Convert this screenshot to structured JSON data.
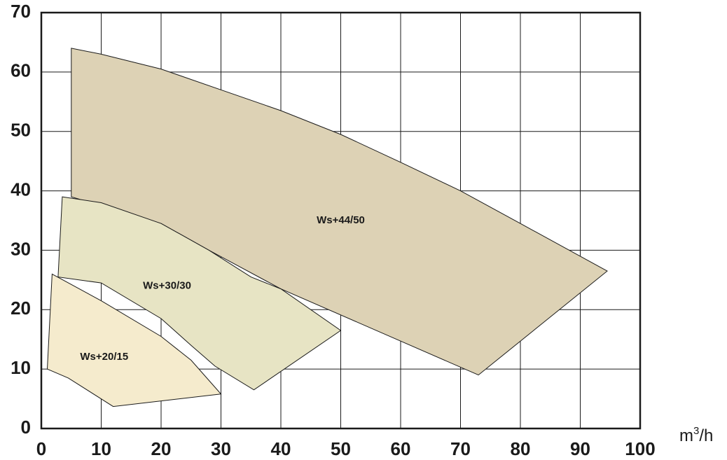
{
  "chart_data": {
    "type": "area",
    "x_unit_base": "m",
    "x_unit_exp": "3",
    "x_unit_tail": "/h",
    "xlim": [
      0,
      100
    ],
    "ylim": [
      0,
      70
    ],
    "x_ticks": [
      0,
      10,
      20,
      30,
      40,
      50,
      60,
      70,
      80,
      90,
      100
    ],
    "y_ticks": [
      0,
      10,
      20,
      30,
      40,
      50,
      60,
      70
    ],
    "grid": true,
    "series": [
      {
        "name": "Ws+44/50",
        "color": "#ddd2b5",
        "label_at": [
          50,
          35
        ],
        "points": [
          [
            5,
            64
          ],
          [
            10,
            63
          ],
          [
            20,
            60.5
          ],
          [
            30,
            57
          ],
          [
            40,
            53.5
          ],
          [
            50,
            49.5
          ],
          [
            60,
            44.8
          ],
          [
            70,
            40
          ],
          [
            80,
            34.5
          ],
          [
            94.5,
            26.5
          ],
          [
            73,
            9
          ],
          [
            40,
            23.5
          ],
          [
            28,
            30
          ],
          [
            20,
            34.5
          ],
          [
            5,
            39
          ]
        ]
      },
      {
        "name": "Ws+30/30",
        "color": "#e7e4c4",
        "label_at": [
          21,
          24
        ],
        "points": [
          [
            3.5,
            39
          ],
          [
            10,
            38
          ],
          [
            20,
            34.5
          ],
          [
            28,
            30
          ],
          [
            35,
            25.5
          ],
          [
            40,
            23.5
          ],
          [
            50,
            16.5
          ],
          [
            35.5,
            6.5
          ],
          [
            29,
            10.5
          ],
          [
            25,
            14
          ],
          [
            20,
            18.5
          ],
          [
            10,
            24.5
          ],
          [
            2.8,
            25.5
          ]
        ]
      },
      {
        "name": "Ws+20/15",
        "color": "#f5ebcd",
        "label_at": [
          10.5,
          12
        ],
        "points": [
          [
            1.8,
            26
          ],
          [
            10,
            21.5
          ],
          [
            20,
            15.5
          ],
          [
            25,
            11.5
          ],
          [
            30,
            5.8
          ],
          [
            12,
            3.7
          ],
          [
            4.5,
            8.5
          ],
          [
            1,
            10
          ]
        ]
      }
    ]
  }
}
